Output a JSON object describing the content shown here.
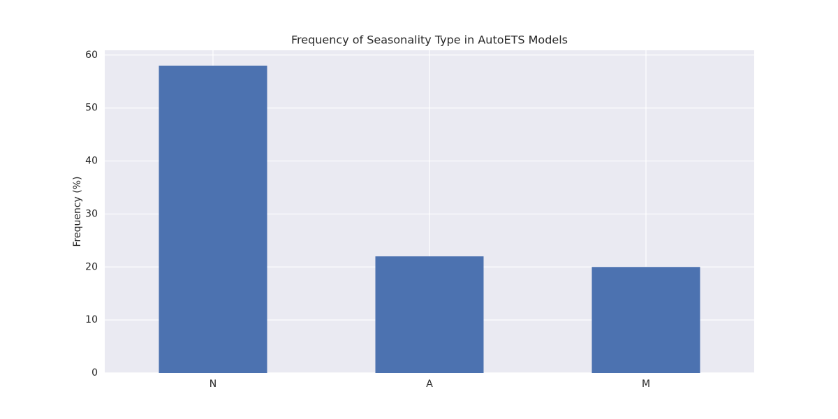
{
  "chart_data": {
    "type": "bar",
    "title": "Frequency of Seasonality Type in AutoETS Models",
    "y_label": "Frequency (%)",
    "categories": [
      "N",
      "A",
      "M"
    ],
    "values": [
      58,
      22,
      20
    ],
    "color": "#4c72b0",
    "ylim": [
      0,
      60.9
    ],
    "yticks": [
      0,
      10,
      20,
      30,
      40,
      50,
      60
    ],
    "grid": true
  }
}
